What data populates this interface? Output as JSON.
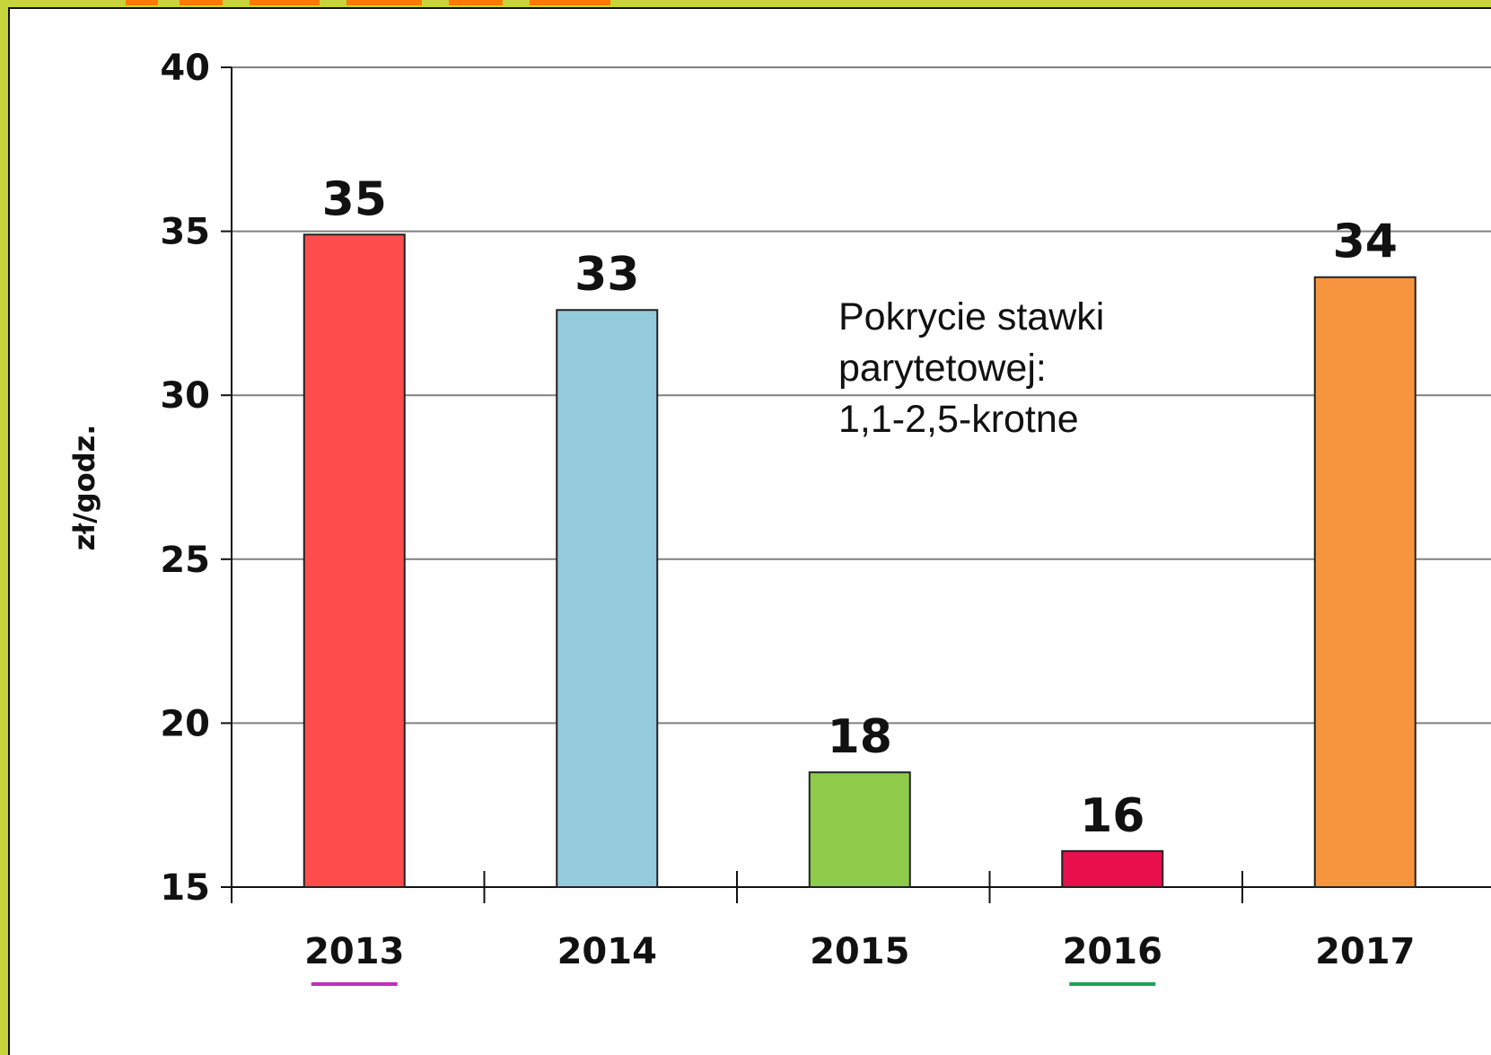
{
  "chart_data": {
    "type": "bar",
    "title": "",
    "xlabel": "",
    "ylabel": "zł/godz.",
    "categories": [
      "2013",
      "2014",
      "2015",
      "2016",
      "2017"
    ],
    "values": [
      35,
      33,
      18,
      16,
      34
    ],
    "bar_values": [
      34.9,
      32.6,
      18.5,
      16.1,
      33.6
    ],
    "ylim": [
      15,
      40
    ],
    "yticks": [
      15,
      20,
      25,
      30,
      35,
      40
    ],
    "grid": "horizontal",
    "colors": [
      "#ff4d4d",
      "#93cadc",
      "#8ecb4a",
      "#e8104c",
      "#f7953f"
    ],
    "category_underline_colors": {
      "2013": "#c02fc0",
      "2016": "#1aa35a"
    },
    "annotation": [
      "Pokrycie stawki",
      "parytetowej:",
      "1,1-2,5-krotne"
    ]
  },
  "frame": {
    "accent_band_color": "#c8d43c",
    "title_accent_color": "#ff7a00"
  }
}
